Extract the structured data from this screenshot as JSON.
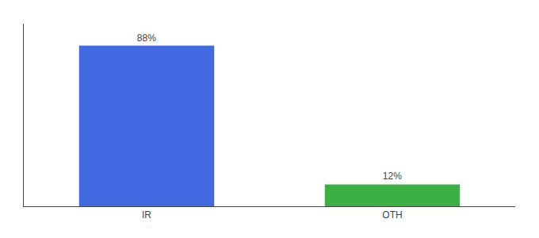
{
  "chart_data": {
    "type": "bar",
    "categories": [
      "IR",
      "OTH"
    ],
    "values": [
      88,
      12
    ],
    "value_labels": [
      "88%",
      "12%"
    ],
    "colors": [
      "#4169e1",
      "#3cb043"
    ],
    "ylim": [
      0,
      100
    ],
    "grid": false,
    "data_labels": true,
    "tick_labels": "x"
  }
}
